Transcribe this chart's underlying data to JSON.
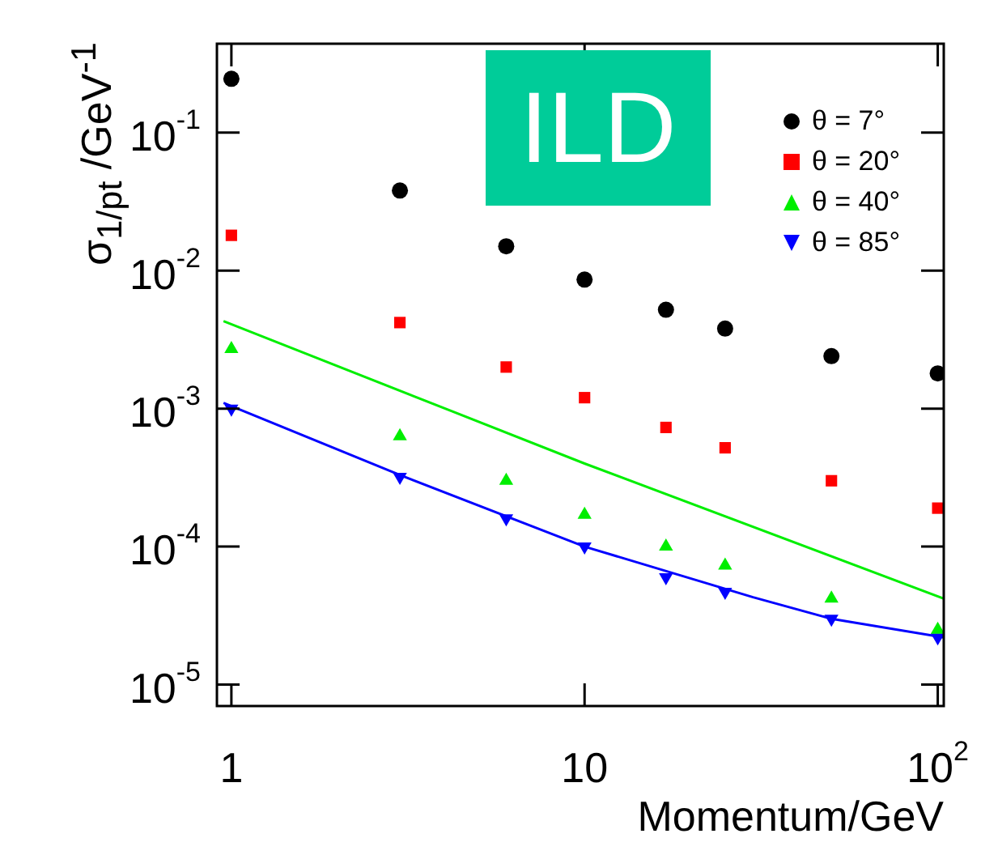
{
  "chart_data": {
    "type": "scatter",
    "xlabel": "Momentum/GeV",
    "ylabel": "σ$_{1/pt}$ /GeV$^{-1}$",
    "annotations": [
      "ILD"
    ],
    "x": [
      1,
      3,
      6,
      10,
      17,
      25,
      50,
      100
    ],
    "series": [
      {
        "name": "θ = 7°",
        "color": "#000000",
        "marker": "circle",
        "values": [
          0.245,
          0.038,
          0.015,
          0.0086,
          0.0052,
          0.0038,
          0.0024,
          0.0018
        ]
      },
      {
        "name": "θ = 20°",
        "color": "#ff0000",
        "marker": "square",
        "values": [
          0.018,
          0.0042,
          0.002,
          0.0012,
          0.00073,
          0.00052,
          0.0003,
          0.00019
        ]
      },
      {
        "name": "θ = 40°",
        "color": "#00ee00",
        "marker": "triangle",
        "values": [
          0.0027,
          0.00063,
          0.0003,
          0.00017,
          0.0001,
          7.3e-05,
          4.2e-05,
          2.5e-05
        ]
      },
      {
        "name": "θ = 85°",
        "color": "#0000ff",
        "marker": "triangle-down",
        "values": [
          0.001,
          0.00032,
          0.00016,
          0.0001,
          6e-05,
          4.7e-05,
          3e-05,
          2.2e-05
        ]
      },
      {
        "type": "line",
        "color": "#00ee00",
        "marker": "none",
        "x": [
          0.95,
          10,
          104
        ],
        "values": [
          0.0043,
          0.0004,
          4.2e-05
        ]
      },
      {
        "type": "line",
        "color": "#0000ff",
        "marker": "none",
        "x": [
          0.95,
          3,
          10,
          30,
          50,
          104
        ],
        "values": [
          0.0011,
          0.00033,
          0.0001,
          4.3e-05,
          3e-05,
          2.2e-05
        ]
      }
    ],
    "log": "xy",
    "grid": false,
    "legend": "top right",
    "xlim": [
      0.91,
      104
    ],
    "xticks": [
      1,
      10,
      {
        "value": 100,
        "label": "10$^{2}$"
      }
    ],
    "ylim": [
      7e-06,
      0.44
    ],
    "yticks": [
      {
        "value": 1e-05,
        "label": "10$^{-5}$"
      },
      {
        "value": 0.0001,
        "label": "10$^{-4}$"
      },
      {
        "value": 0.001,
        "label": "10$^{-3}$"
      },
      {
        "value": 0.01,
        "label": "10$^{-2}$"
      },
      {
        "value": 0.1,
        "label": "10$^{-1}$"
      }
    ]
  }
}
